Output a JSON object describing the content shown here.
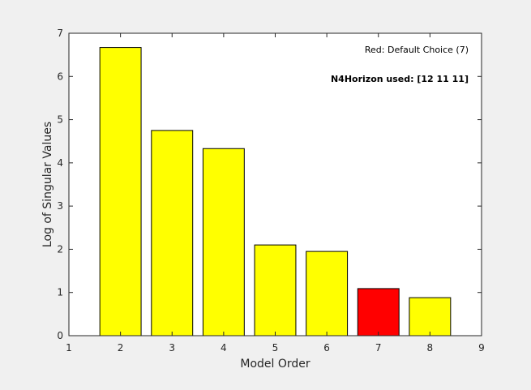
{
  "chart_data": {
    "type": "bar",
    "xlabel": "Model Order",
    "ylabel": "Log of Singular Values",
    "xlim": [
      1,
      9
    ],
    "ylim": [
      0,
      7
    ],
    "xticks": [
      1,
      2,
      3,
      4,
      5,
      6,
      7,
      8,
      9
    ],
    "yticks": [
      0,
      1,
      2,
      3,
      4,
      5,
      6,
      7
    ],
    "categories": [
      2,
      3,
      4,
      5,
      6,
      7,
      8
    ],
    "values": [
      6.67,
      4.75,
      4.33,
      2.1,
      1.95,
      1.09,
      0.88
    ],
    "bar_colors": [
      "#ffff00",
      "#ffff00",
      "#ffff00",
      "#ffff00",
      "#ffff00",
      "#ff0000",
      "#ffff00"
    ],
    "annotations": {
      "default_choice": "Red: Default Choice (7)",
      "horizon": "N4Horizon used: [12 11 11]"
    },
    "grid": false
  }
}
